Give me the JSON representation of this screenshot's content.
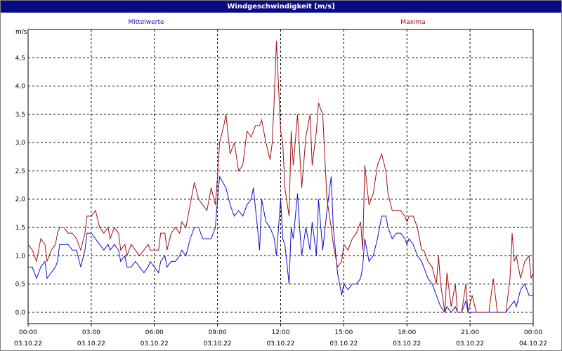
{
  "window": {
    "title": "Windgeschwindigkeit [m/s]"
  },
  "colors": {
    "title_bar": "#0a0a84",
    "mean_series": "#1010cc",
    "max_series": "#a01010",
    "grid": "#000000"
  },
  "chart_data": {
    "type": "line",
    "title": "Windgeschwindigkeit [m/s]",
    "ylabel": "m/s",
    "xlabel": "",
    "ylim": [
      -0.2,
      5.0
    ],
    "xlim_hours": [
      0,
      24
    ],
    "grid": true,
    "legend_position": "top",
    "y_ticks": [
      {
        "value": 0.0,
        "label": "0,0"
      },
      {
        "value": 0.5,
        "label": "0,5"
      },
      {
        "value": 1.0,
        "label": "1,0"
      },
      {
        "value": 1.5,
        "label": "1,5"
      },
      {
        "value": 2.0,
        "label": "2,0"
      },
      {
        "value": 2.5,
        "label": "2,5"
      },
      {
        "value": 3.0,
        "label": "3,0"
      },
      {
        "value": 3.5,
        "label": "3,5"
      },
      {
        "value": 4.0,
        "label": "4,0"
      },
      {
        "value": 4.5,
        "label": "4,5"
      }
    ],
    "x_ticks": [
      {
        "hour": 0,
        "time": "00:00",
        "date": "03.10.22"
      },
      {
        "hour": 3,
        "time": "03:00",
        "date": "03.10.22"
      },
      {
        "hour": 6,
        "time": "06:00",
        "date": "03.10.22"
      },
      {
        "hour": 9,
        "time": "09:00",
        "date": "03.10.22"
      },
      {
        "hour": 12,
        "time": "12:00",
        "date": "03.10.22"
      },
      {
        "hour": 15,
        "time": "15:00",
        "date": "03.10.22"
      },
      {
        "hour": 18,
        "time": "18:00",
        "date": "03.10.22"
      },
      {
        "hour": 21,
        "time": "21:00",
        "date": "03.10.22"
      },
      {
        "hour": 24,
        "time": "00:00",
        "date": "04.10.22"
      }
    ],
    "series": [
      {
        "name": "Mittelwerte",
        "color": "#1010cc",
        "values": [
          [
            0.0,
            0.8
          ],
          [
            0.2,
            0.8
          ],
          [
            0.4,
            0.6
          ],
          [
            0.6,
            0.8
          ],
          [
            0.8,
            0.9
          ],
          [
            0.9,
            0.6
          ],
          [
            1.1,
            0.7
          ],
          [
            1.3,
            0.8
          ],
          [
            1.4,
            0.9
          ],
          [
            1.5,
            1.2
          ],
          [
            1.7,
            1.2
          ],
          [
            1.9,
            1.2
          ],
          [
            2.1,
            1.1
          ],
          [
            2.3,
            1.1
          ],
          [
            2.5,
            0.8
          ],
          [
            2.7,
            1.1
          ],
          [
            2.8,
            1.4
          ],
          [
            3.0,
            1.4
          ],
          [
            3.2,
            1.3
          ],
          [
            3.4,
            1.2
          ],
          [
            3.6,
            1.1
          ],
          [
            3.8,
            1.2
          ],
          [
            3.9,
            1.1
          ],
          [
            4.1,
            1.2
          ],
          [
            4.3,
            1.1
          ],
          [
            4.4,
            0.9
          ],
          [
            4.6,
            1.0
          ],
          [
            4.7,
            0.8
          ],
          [
            4.9,
            0.8
          ],
          [
            5.1,
            0.9
          ],
          [
            5.3,
            0.8
          ],
          [
            5.5,
            0.7
          ],
          [
            5.7,
            0.8
          ],
          [
            5.8,
            0.9
          ],
          [
            6.0,
            0.8
          ],
          [
            6.2,
            0.7
          ],
          [
            6.3,
            0.9
          ],
          [
            6.5,
            1.0
          ],
          [
            6.6,
            0.8
          ],
          [
            6.8,
            0.9
          ],
          [
            7.0,
            0.9
          ],
          [
            7.2,
            1.0
          ],
          [
            7.3,
            1.1
          ],
          [
            7.5,
            1.0
          ],
          [
            7.7,
            1.3
          ],
          [
            7.9,
            1.5
          ],
          [
            8.1,
            1.5
          ],
          [
            8.3,
            1.3
          ],
          [
            8.5,
            1.3
          ],
          [
            8.7,
            1.3
          ],
          [
            8.9,
            1.5
          ],
          [
            9.0,
            2.0
          ],
          [
            9.1,
            2.4
          ],
          [
            9.4,
            2.2
          ],
          [
            9.6,
            1.9
          ],
          [
            9.8,
            1.7
          ],
          [
            10.0,
            1.8
          ],
          [
            10.2,
            1.7
          ],
          [
            10.4,
            1.9
          ],
          [
            10.6,
            2.0
          ],
          [
            10.7,
            2.2
          ],
          [
            10.9,
            1.5
          ],
          [
            11.0,
            1.1
          ],
          [
            11.1,
            2.0
          ],
          [
            11.3,
            1.6
          ],
          [
            11.5,
            1.5
          ],
          [
            11.7,
            1.3
          ],
          [
            11.8,
            1.0
          ],
          [
            12.0,
            2.0
          ],
          [
            12.1,
            1.3
          ],
          [
            12.2,
            1.2
          ],
          [
            12.4,
            0.5
          ],
          [
            12.5,
            1.5
          ],
          [
            12.6,
            1.3
          ],
          [
            12.8,
            2.1
          ],
          [
            12.9,
            1.5
          ],
          [
            13.0,
            1.0
          ],
          [
            13.2,
            1.5
          ],
          [
            13.4,
            1.1
          ],
          [
            13.5,
            1.6
          ],
          [
            13.7,
            1.0
          ],
          [
            13.8,
            2.0
          ],
          [
            14.0,
            1.1
          ],
          [
            14.2,
            1.8
          ],
          [
            14.4,
            2.4
          ],
          [
            14.5,
            1.5
          ],
          [
            14.7,
            0.7
          ],
          [
            14.9,
            0.3
          ],
          [
            15.0,
            0.5
          ],
          [
            15.2,
            0.4
          ],
          [
            15.4,
            0.5
          ],
          [
            15.6,
            0.5
          ],
          [
            15.8,
            0.6
          ],
          [
            15.9,
            0.8
          ],
          [
            16.0,
            1.3
          ],
          [
            16.2,
            0.9
          ],
          [
            16.4,
            1.0
          ],
          [
            16.6,
            1.3
          ],
          [
            16.8,
            1.7
          ],
          [
            17.0,
            1.7
          ],
          [
            17.1,
            1.5
          ],
          [
            17.3,
            1.3
          ],
          [
            17.5,
            1.4
          ],
          [
            17.7,
            1.4
          ],
          [
            17.9,
            1.3
          ],
          [
            18.0,
            1.2
          ],
          [
            18.1,
            1.3
          ],
          [
            18.3,
            1.2
          ],
          [
            18.5,
            1.0
          ],
          [
            18.7,
            0.9
          ],
          [
            18.8,
            0.8
          ],
          [
            19.0,
            0.6
          ],
          [
            19.2,
            0.5
          ],
          [
            19.4,
            0.3
          ],
          [
            19.6,
            0.1
          ],
          [
            19.8,
            0.0
          ],
          [
            19.9,
            0.1
          ],
          [
            20.1,
            0.0
          ],
          [
            20.3,
            0.1
          ],
          [
            20.4,
            0.0
          ],
          [
            20.6,
            0.0
          ],
          [
            20.8,
            0.2
          ],
          [
            20.9,
            0.0
          ],
          [
            21.1,
            0.0
          ],
          [
            21.3,
            0.0
          ],
          [
            21.5,
            0.0
          ],
          [
            21.7,
            0.0
          ],
          [
            21.9,
            0.0
          ],
          [
            22.1,
            0.0
          ],
          [
            22.3,
            0.0
          ],
          [
            22.5,
            0.0
          ],
          [
            22.7,
            0.0
          ],
          [
            22.9,
            0.1
          ],
          [
            23.1,
            0.2
          ],
          [
            23.2,
            0.1
          ],
          [
            23.4,
            0.4
          ],
          [
            23.6,
            0.5
          ],
          [
            23.8,
            0.3
          ],
          [
            24.0,
            0.3
          ]
        ]
      },
      {
        "name": "Maxima",
        "color": "#a01010",
        "values": [
          [
            0.0,
            1.2
          ],
          [
            0.2,
            1.1
          ],
          [
            0.4,
            0.9
          ],
          [
            0.6,
            1.3
          ],
          [
            0.8,
            1.2
          ],
          [
            0.9,
            0.9
          ],
          [
            1.1,
            1.1
          ],
          [
            1.3,
            1.2
          ],
          [
            1.4,
            1.4
          ],
          [
            1.5,
            1.5
          ],
          [
            1.7,
            1.5
          ],
          [
            1.9,
            1.4
          ],
          [
            2.1,
            1.4
          ],
          [
            2.3,
            1.3
          ],
          [
            2.5,
            1.1
          ],
          [
            2.7,
            1.4
          ],
          [
            2.8,
            1.7
          ],
          [
            3.0,
            1.7
          ],
          [
            3.2,
            1.8
          ],
          [
            3.4,
            1.5
          ],
          [
            3.6,
            1.4
          ],
          [
            3.8,
            1.5
          ],
          [
            3.9,
            1.3
          ],
          [
            4.1,
            1.5
          ],
          [
            4.3,
            1.4
          ],
          [
            4.4,
            1.1
          ],
          [
            4.6,
            1.2
          ],
          [
            4.7,
            1.0
          ],
          [
            4.9,
            1.2
          ],
          [
            5.1,
            1.1
          ],
          [
            5.3,
            1.0
          ],
          [
            5.5,
            1.1
          ],
          [
            5.7,
            1.2
          ],
          [
            5.8,
            1.1
          ],
          [
            6.0,
            1.1
          ],
          [
            6.2,
            1.1
          ],
          [
            6.3,
            1.4
          ],
          [
            6.5,
            1.4
          ],
          [
            6.6,
            1.1
          ],
          [
            6.8,
            1.4
          ],
          [
            7.0,
            1.5
          ],
          [
            7.2,
            1.4
          ],
          [
            7.3,
            1.6
          ],
          [
            7.5,
            1.5
          ],
          [
            7.7,
            1.9
          ],
          [
            7.9,
            2.3
          ],
          [
            8.1,
            2.0
          ],
          [
            8.3,
            1.9
          ],
          [
            8.5,
            1.8
          ],
          [
            8.7,
            2.2
          ],
          [
            8.9,
            1.9
          ],
          [
            9.0,
            2.4
          ],
          [
            9.1,
            3.0
          ],
          [
            9.3,
            3.3
          ],
          [
            9.4,
            3.5
          ],
          [
            9.6,
            2.8
          ],
          [
            9.8,
            3.0
          ],
          [
            10.0,
            2.5
          ],
          [
            10.2,
            2.6
          ],
          [
            10.4,
            3.2
          ],
          [
            10.6,
            3.1
          ],
          [
            10.8,
            3.3
          ],
          [
            11.0,
            3.3
          ],
          [
            11.1,
            3.4
          ],
          [
            11.3,
            3.0
          ],
          [
            11.5,
            2.7
          ],
          [
            11.6,
            3.0
          ],
          [
            11.7,
            3.8
          ],
          [
            11.8,
            4.8
          ],
          [
            12.0,
            3.2
          ],
          [
            12.1,
            3.0
          ],
          [
            12.2,
            2.2
          ],
          [
            12.4,
            1.7
          ],
          [
            12.5,
            3.2
          ],
          [
            12.6,
            2.6
          ],
          [
            12.8,
            3.5
          ],
          [
            13.0,
            2.2
          ],
          [
            13.2,
            3.1
          ],
          [
            13.4,
            3.5
          ],
          [
            13.5,
            2.6
          ],
          [
            13.7,
            3.2
          ],
          [
            13.8,
            3.7
          ],
          [
            14.0,
            3.5
          ],
          [
            14.2,
            2.0
          ],
          [
            14.4,
            1.5
          ],
          [
            14.5,
            1.2
          ],
          [
            14.7,
            0.8
          ],
          [
            14.9,
            0.9
          ],
          [
            15.0,
            1.2
          ],
          [
            15.2,
            1.1
          ],
          [
            15.4,
            1.3
          ],
          [
            15.6,
            1.4
          ],
          [
            15.8,
            1.6
          ],
          [
            15.9,
            1.1
          ],
          [
            16.0,
            2.6
          ],
          [
            16.2,
            1.9
          ],
          [
            16.4,
            2.1
          ],
          [
            16.6,
            2.6
          ],
          [
            16.8,
            2.8
          ],
          [
            17.0,
            2.5
          ],
          [
            17.1,
            2.1
          ],
          [
            17.3,
            1.8
          ],
          [
            17.5,
            1.8
          ],
          [
            17.7,
            1.8
          ],
          [
            17.9,
            1.7
          ],
          [
            18.0,
            1.6
          ],
          [
            18.1,
            1.7
          ],
          [
            18.3,
            1.7
          ],
          [
            18.5,
            1.5
          ],
          [
            18.7,
            1.1
          ],
          [
            18.8,
            1.1
          ],
          [
            19.0,
            0.9
          ],
          [
            19.2,
            0.8
          ],
          [
            19.4,
            0.5
          ],
          [
            19.5,
            1.0
          ],
          [
            19.6,
            0.5
          ],
          [
            19.8,
            0.0
          ],
          [
            19.9,
            0.7
          ],
          [
            20.1,
            0.1
          ],
          [
            20.3,
            0.5
          ],
          [
            20.4,
            0.0
          ],
          [
            20.6,
            0.0
          ],
          [
            20.8,
            0.5
          ],
          [
            20.9,
            0.0
          ],
          [
            21.1,
            0.3
          ],
          [
            21.3,
            0.0
          ],
          [
            21.5,
            0.0
          ],
          [
            21.7,
            0.0
          ],
          [
            21.9,
            0.0
          ],
          [
            22.1,
            0.6
          ],
          [
            22.3,
            0.0
          ],
          [
            22.5,
            0.0
          ],
          [
            22.7,
            0.0
          ],
          [
            22.9,
            0.6
          ],
          [
            23.0,
            1.4
          ],
          [
            23.1,
            0.9
          ],
          [
            23.2,
            1.0
          ],
          [
            23.4,
            0.6
          ],
          [
            23.6,
            0.9
          ],
          [
            23.8,
            1.0
          ],
          [
            23.9,
            0.6
          ],
          [
            24.0,
            0.7
          ]
        ]
      }
    ]
  }
}
